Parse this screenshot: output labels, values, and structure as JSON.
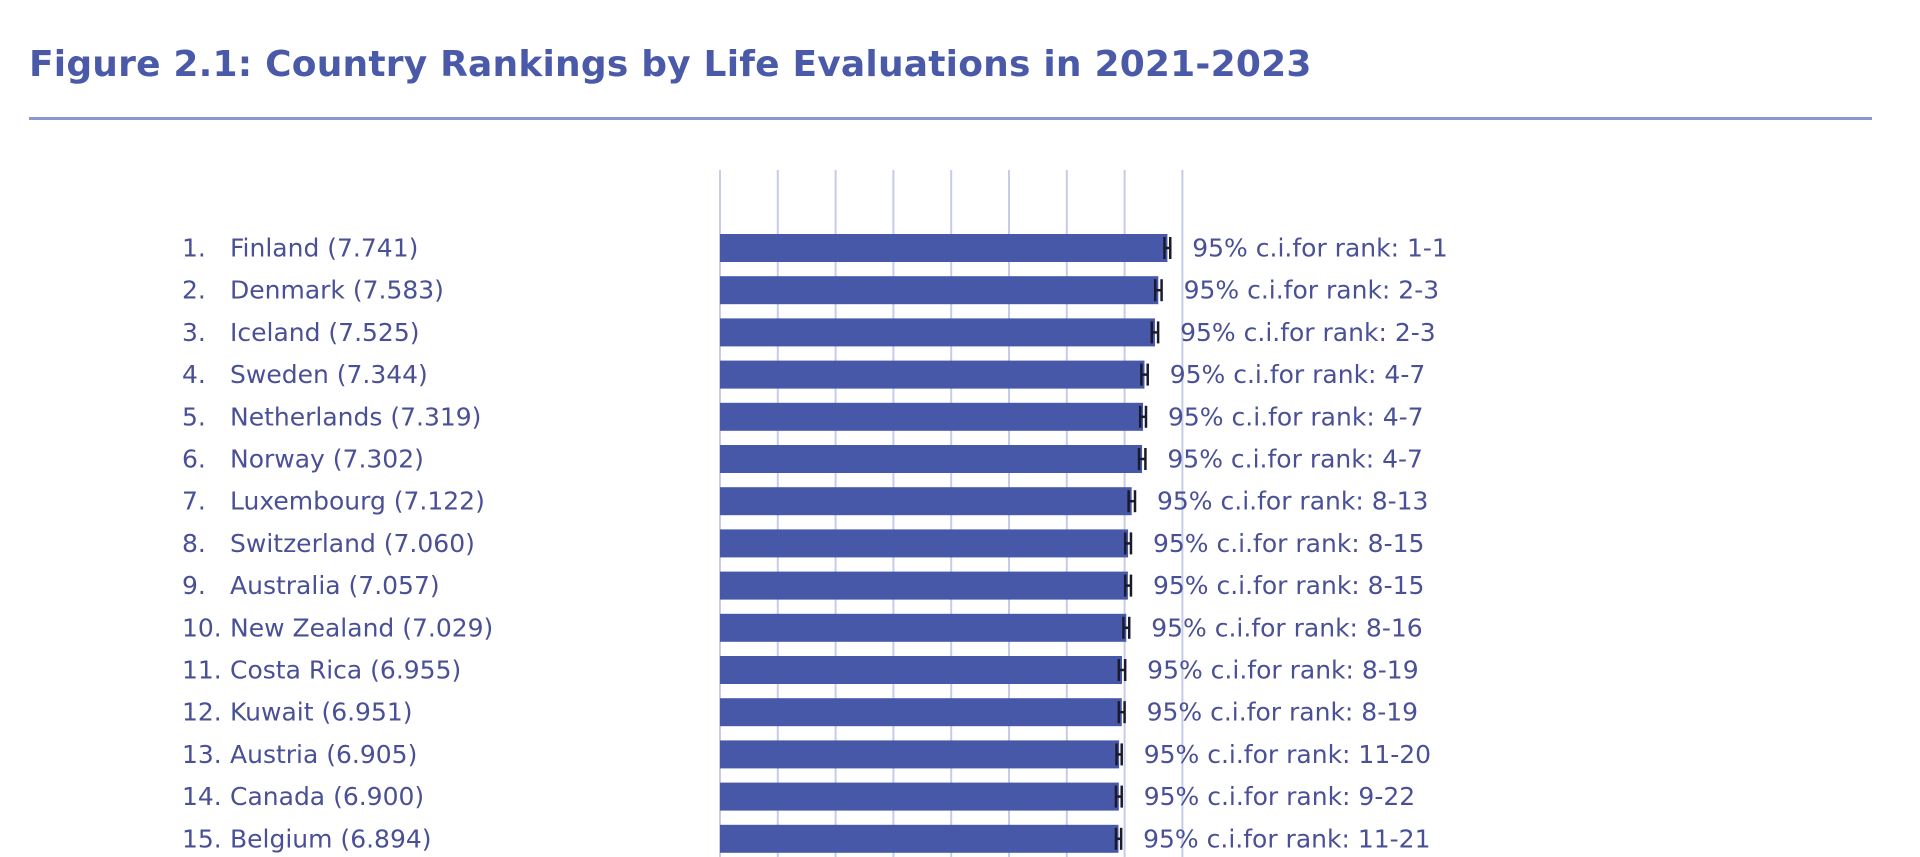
{
  "figure": {
    "title": "Figure 2.1: Country Rankings by Life Evaluations in 2021-2023"
  },
  "colors": {
    "title": "#4a5aa8",
    "rule": "#8b97d2",
    "bar": "#4858a8",
    "gridline": "#c5cbea",
    "text": "#4a5096",
    "whisker": "#1a1a2a"
  },
  "chart_data": {
    "type": "bar",
    "orientation": "horizontal",
    "title": "Figure 2.1: Country Rankings by Life Evaluations in 2021-2023",
    "grid": true,
    "xlim": [
      0,
      8
    ],
    "ranks": [
      "1.",
      "2.",
      "3.",
      "4.",
      "5.",
      "6.",
      "7.",
      "8.",
      "9.",
      "10.",
      "11.",
      "12.",
      "13.",
      "14.",
      "15."
    ],
    "row_labels": [
      "Finland (7.741)",
      "Denmark (7.583)",
      "Iceland (7.525)",
      "Sweden (7.344)",
      "Netherlands (7.319)",
      "Norway (7.302)",
      "Luxembourg (7.122)",
      "Switzerland (7.060)",
      "Australia (7.057)",
      "New Zealand (7.029)",
      "Costa Rica (6.955)",
      "Kuwait (6.951)",
      "Austria (6.905)",
      "Canada (6.900)",
      "Belgium (6.894)"
    ],
    "categories": [
      "Finland",
      "Denmark",
      "Iceland",
      "Sweden",
      "Netherlands",
      "Norway",
      "Luxembourg",
      "Switzerland",
      "Australia",
      "New Zealand",
      "Costa Rica",
      "Kuwait",
      "Austria",
      "Canada",
      "Belgium"
    ],
    "values": [
      7.741,
      7.583,
      7.525,
      7.344,
      7.319,
      7.302,
      7.122,
      7.06,
      7.057,
      7.029,
      6.955,
      6.951,
      6.905,
      6.9,
      6.894
    ],
    "ci_low": [
      7.69,
      7.53,
      7.47,
      7.29,
      7.27,
      7.25,
      7.07,
      7.01,
      7.01,
      6.98,
      6.9,
      6.9,
      6.86,
      6.85,
      6.85
    ],
    "ci_high": [
      7.79,
      7.64,
      7.58,
      7.4,
      7.37,
      7.36,
      7.18,
      7.11,
      7.11,
      7.08,
      7.01,
      7.0,
      6.95,
      6.95,
      6.94
    ],
    "rank_ci_labels": [
      "95% c.i.for rank: 1-1",
      "95% c.i.for rank: 2-3",
      "95% c.i.for rank: 2-3",
      "95% c.i.for rank: 4-7",
      "95% c.i.for rank: 4-7",
      "95% c.i.for rank: 4-7",
      "95% c.i.for rank: 8-13",
      "95% c.i.for rank: 8-15",
      "95% c.i.for rank: 8-15",
      "95% c.i.for rank: 8-16",
      "95% c.i.for rank: 8-19",
      "95% c.i.for rank: 8-19",
      "95% c.i.for rank: 11-20",
      "95% c.i.for rank: 9-22",
      "95% c.i.for rank: 11-21"
    ]
  }
}
